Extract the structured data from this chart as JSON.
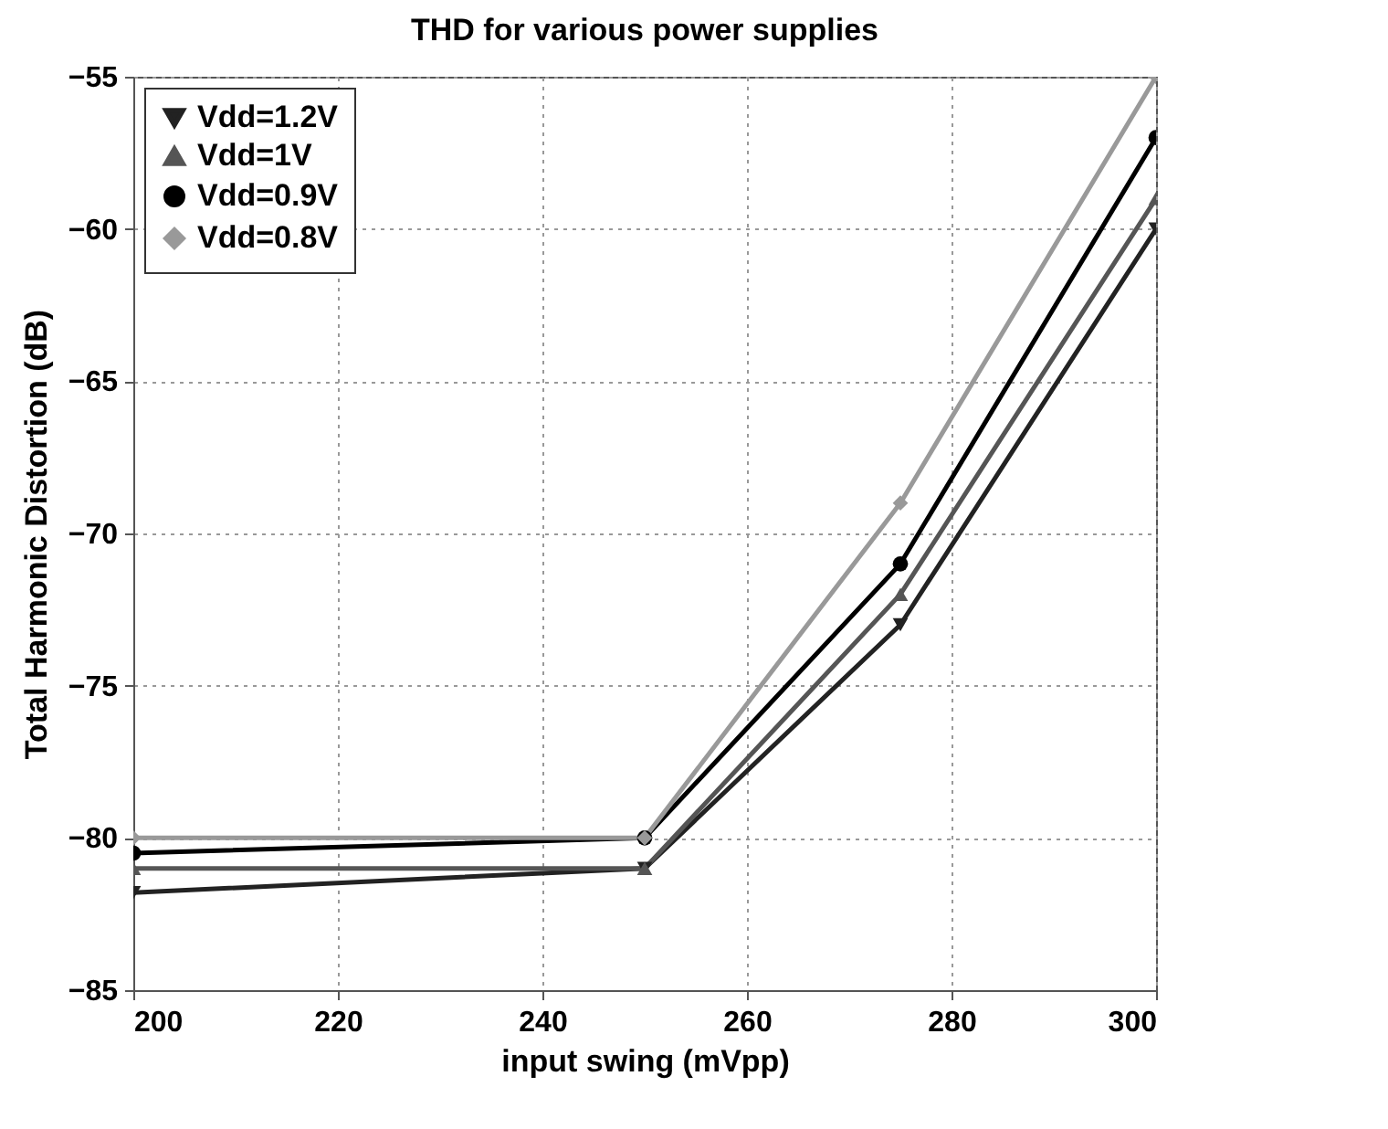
{
  "chart_data": {
    "type": "line",
    "title": "THD for various power supplies",
    "xlabel": "input swing (mVpp)",
    "ylabel": "Total Harmonic Distortion (dB)",
    "x": [
      200,
      250,
      275,
      300
    ],
    "series": [
      {
        "name": "Vdd=1.2V",
        "color": "#222222",
        "marker": "triangle",
        "values": [
          -81.8,
          -81,
          -73,
          -60
        ]
      },
      {
        "name": "Vdd=1V",
        "color": "#555555",
        "marker": "triangle",
        "values": [
          -81,
          -81,
          -72,
          -59
        ]
      },
      {
        "name": "Vdd=0.9V",
        "color": "#000000",
        "marker": "circle",
        "values": [
          -80.5,
          -80,
          -71,
          -57
        ]
      },
      {
        "name": "Vdd=0.8V",
        "color": "#999999",
        "marker": "diamond",
        "values": [
          -80,
          -80,
          -69,
          -55
        ]
      }
    ],
    "xlim": [
      200,
      300
    ],
    "xticks": [
      200,
      220,
      240,
      260,
      280,
      300
    ],
    "ylim": [
      -85,
      -55
    ],
    "yticks": [
      -85,
      -80,
      -75,
      -70,
      -65,
      -60,
      -55
    ],
    "grid": true,
    "legend": "top left",
    "line_style": "solid"
  }
}
